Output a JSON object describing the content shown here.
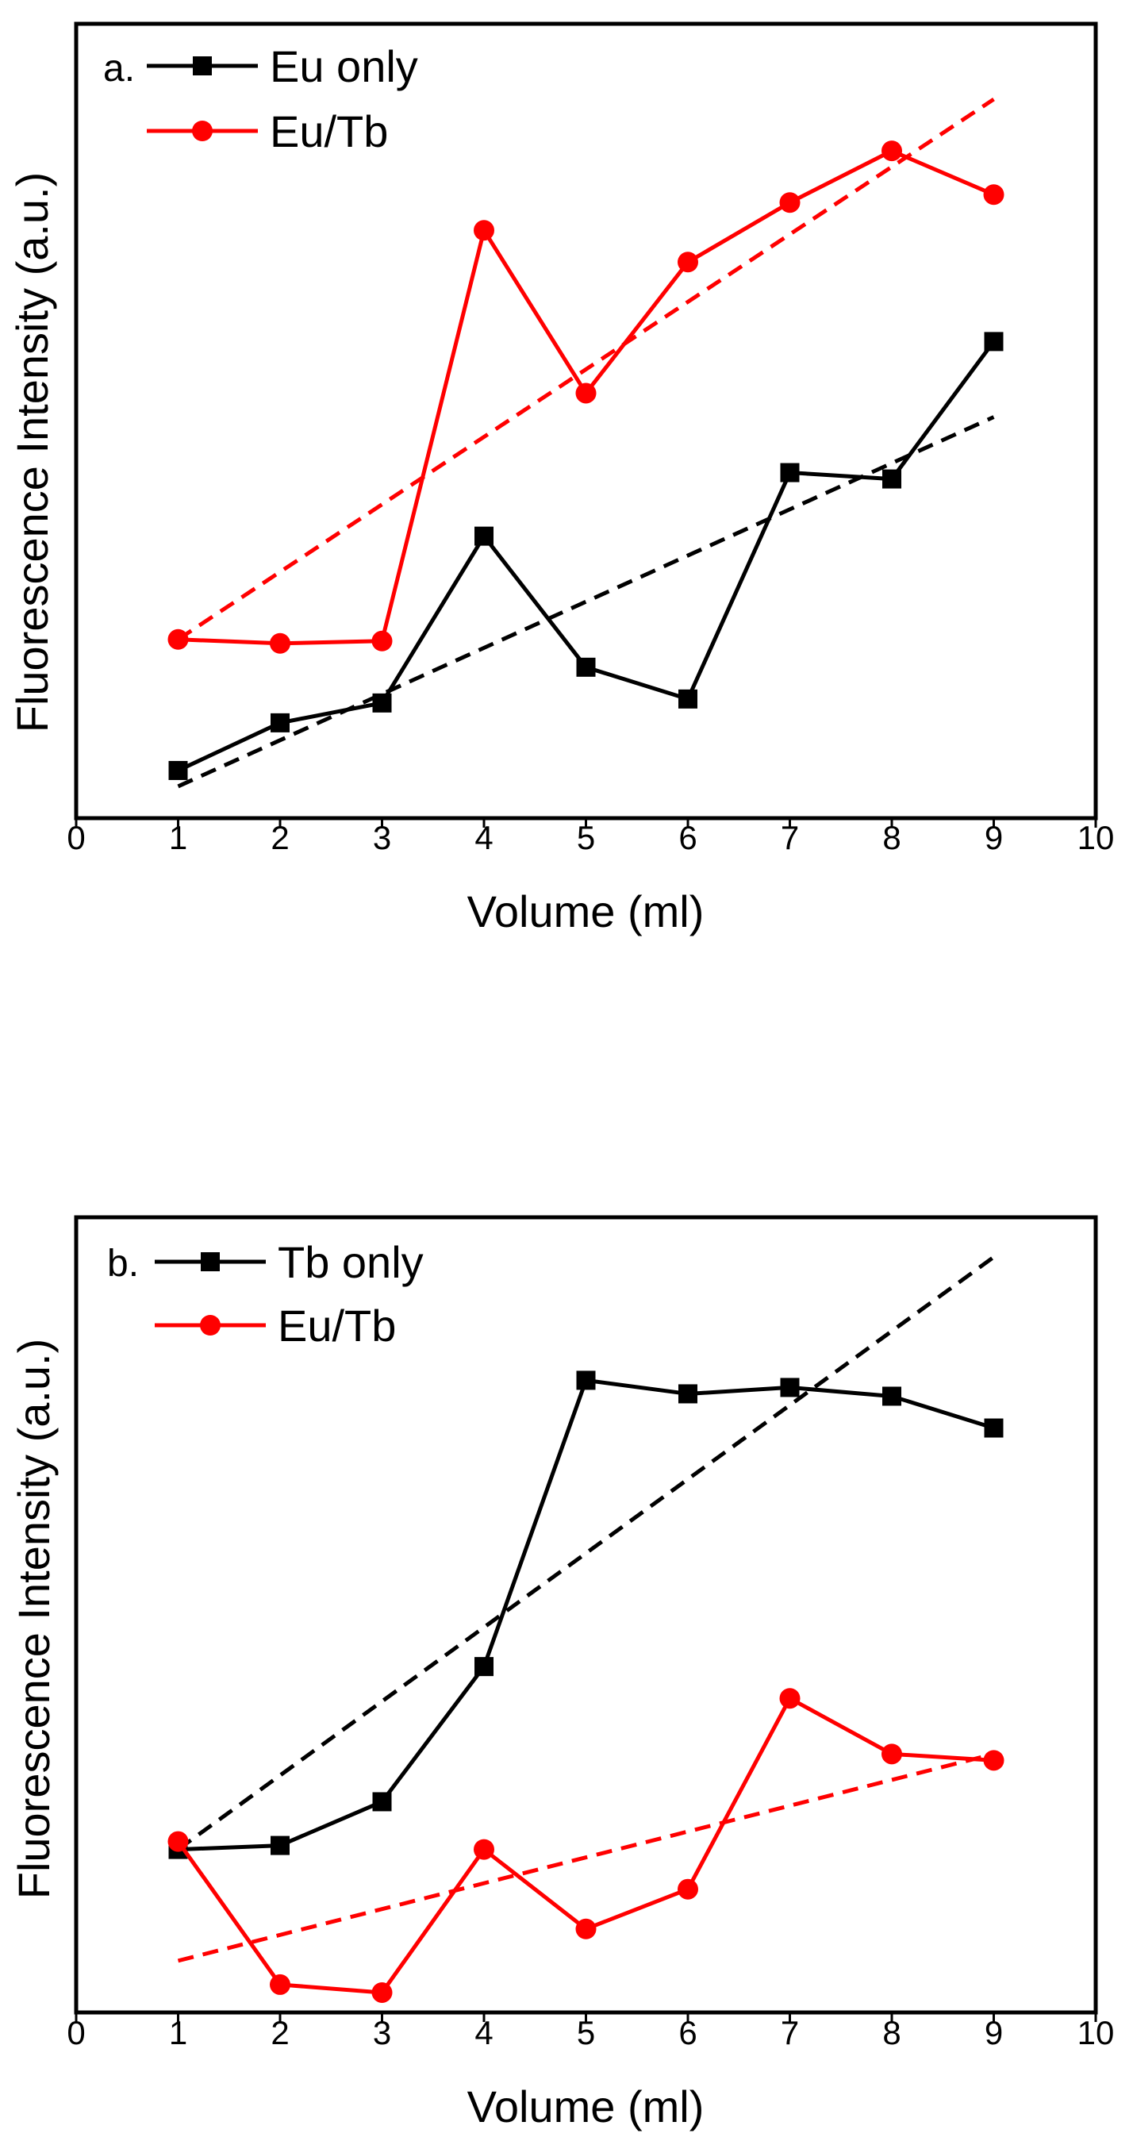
{
  "chart_data": [
    {
      "type": "line",
      "panel_label": "a.",
      "xlabel": "Volume (ml)",
      "ylabel": "Fluorescence Intensity (a.u.)",
      "xlim": [
        0,
        10
      ],
      "ylim": [
        0,
        1
      ],
      "x_ticks": [
        "0",
        "1",
        "2",
        "3",
        "4",
        "5",
        "6",
        "7",
        "8",
        "9",
        "10"
      ],
      "y_ticks_shown": false,
      "legend_position": "top-left",
      "series": [
        {
          "name": "Eu only",
          "color": "#000000",
          "marker": "square",
          "x": [
            1,
            2,
            3,
            4,
            5,
            6,
            7,
            8,
            9
          ],
          "y": [
            0.06,
            0.12,
            0.145,
            0.355,
            0.19,
            0.15,
            0.435,
            0.427,
            0.6
          ]
        },
        {
          "name": "Eu/Tb",
          "color": "#ff0000",
          "marker": "circle",
          "x": [
            1,
            2,
            3,
            4,
            5,
            6,
            7,
            8,
            9
          ],
          "y": [
            0.225,
            0.22,
            0.223,
            0.74,
            0.535,
            0.7,
            0.775,
            0.84,
            0.785
          ]
        }
      ],
      "trendlines": [
        {
          "color": "#000000",
          "style": "dashed",
          "x": [
            1,
            9
          ],
          "y": [
            0.04,
            0.505
          ]
        },
        {
          "color": "#ff0000",
          "style": "dashed",
          "x": [
            1,
            9
          ],
          "y": [
            0.225,
            0.905
          ]
        }
      ]
    },
    {
      "type": "line",
      "panel_label": "b.",
      "xlabel": "Volume (ml)",
      "ylabel": "Fluorescence Intensity (a.u.)",
      "xlim": [
        0,
        10
      ],
      "ylim": [
        0,
        1
      ],
      "x_ticks": [
        "0",
        "1",
        "2",
        "3",
        "4",
        "5",
        "6",
        "7",
        "8",
        "9",
        "10"
      ],
      "y_ticks_shown": false,
      "legend_position": "top-left",
      "series": [
        {
          "name": "Tb only",
          "color": "#000000",
          "marker": "square",
          "x": [
            1,
            2,
            3,
            4,
            5,
            6,
            7,
            8,
            9
          ],
          "y": [
            0.205,
            0.21,
            0.265,
            0.435,
            0.795,
            0.778,
            0.786,
            0.775,
            0.735
          ]
        },
        {
          "name": "Eu/Tb",
          "color": "#ff0000",
          "marker": "circle",
          "x": [
            1,
            2,
            3,
            4,
            5,
            6,
            7,
            8,
            9
          ],
          "y": [
            0.215,
            0.035,
            0.025,
            0.205,
            0.105,
            0.155,
            0.395,
            0.325,
            0.317
          ]
        }
      ],
      "trendlines": [
        {
          "color": "#000000",
          "style": "dashed",
          "x": [
            1,
            9
          ],
          "y": [
            0.205,
            0.95
          ]
        },
        {
          "color": "#ff0000",
          "style": "dashed",
          "x": [
            1,
            9
          ],
          "y": [
            0.065,
            0.325
          ]
        }
      ]
    }
  ]
}
